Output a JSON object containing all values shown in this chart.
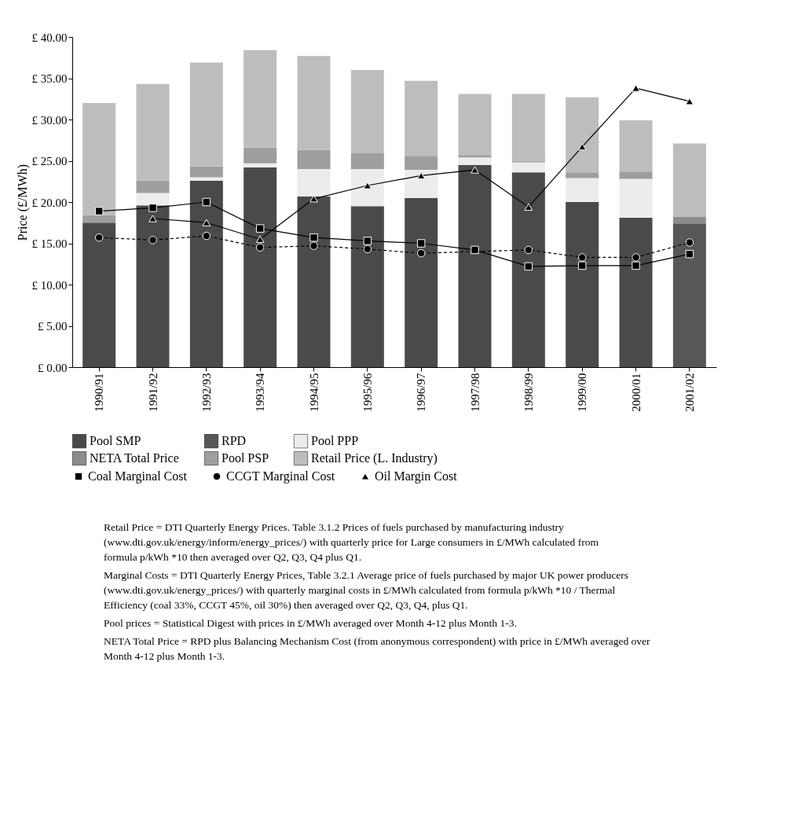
{
  "chart_data": {
    "type": "bar",
    "stacked": true,
    "legend": "bottom",
    "ylabel": "Price (£/MWh)",
    "categories": [
      "1990/91",
      "1991/92",
      "1992/93",
      "1993/94",
      "1994/95",
      "1995/96",
      "1996/97",
      "1997/98",
      "1998/99",
      "1999/00",
      "2000/01",
      "2001/02"
    ],
    "ylim": [
      0,
      40
    ],
    "yticks": [
      {
        "value": 0,
        "label": "£ 0.00"
      },
      {
        "value": 5,
        "label": "£ 5.00"
      },
      {
        "value": 10,
        "label": "£ 10.00"
      },
      {
        "value": 15,
        "label": "£ 15.00"
      },
      {
        "value": 20,
        "label": "£ 20.00"
      },
      {
        "value": 25,
        "label": "£ 25.00"
      },
      {
        "value": 30,
        "label": "£ 30.00"
      },
      {
        "value": 35,
        "label": "£ 35.00"
      },
      {
        "value": 40,
        "label": "£ 40.00"
      }
    ],
    "series": [
      {
        "name": "Pool SMP",
        "type": "bar",
        "color": "#4a4a4a",
        "values": [
          17.5,
          19.6,
          22.6,
          24.2,
          20.7,
          19.5,
          20.5,
          24.5,
          23.6,
          20.0,
          18.1,
          null
        ]
      },
      {
        "name": "RPD",
        "type": "bar",
        "color": "#575757",
        "values": [
          null,
          null,
          null,
          null,
          null,
          null,
          null,
          null,
          null,
          null,
          null,
          17.4
        ]
      },
      {
        "name": "Pool PPP",
        "type": "bar",
        "color": "#ececec",
        "values": [
          null,
          1.5,
          0.4,
          0.5,
          3.3,
          4.5,
          3.4,
          0.9,
          1.2,
          2.9,
          4.7,
          null
        ]
      },
      {
        "name": "NETA Total Price",
        "type": "bar",
        "color": "#8c8c8c",
        "values": [
          null,
          null,
          null,
          null,
          null,
          null,
          null,
          null,
          null,
          null,
          null,
          0.8
        ]
      },
      {
        "name": "Pool PSP",
        "type": "bar",
        "color": "#9e9e9e",
        "values": [
          0.9,
          1.5,
          1.3,
          1.9,
          2.3,
          1.9,
          1.7,
          0.3,
          0.2,
          0.7,
          0.9,
          null
        ]
      },
      {
        "name": "Retail Price (L. Industry)",
        "type": "bar",
        "color": "#bdbdbd",
        "values": [
          13.6,
          11.7,
          12.6,
          11.8,
          11.4,
          10.1,
          9.1,
          7.4,
          8.1,
          9.1,
          6.2,
          8.9
        ]
      },
      {
        "name": "Coal Marginal Cost",
        "type": "line",
        "color": "#000000",
        "marker": "square",
        "line_style": "solid",
        "values": [
          18.9,
          19.3,
          20.0,
          16.8,
          15.7,
          15.3,
          15.0,
          14.2,
          12.2,
          12.3,
          12.3,
          13.7
        ]
      },
      {
        "name": "CCGT Marginal Cost",
        "type": "line",
        "color": "#000000",
        "marker": "circle",
        "line_style": "dashed",
        "values": [
          15.7,
          15.4,
          15.9,
          14.5,
          14.7,
          14.3,
          13.8,
          null,
          14.2,
          13.3,
          13.3,
          15.1
        ]
      },
      {
        "name": "Oil Margin Cost",
        "type": "line",
        "color": "#000000",
        "marker": "triangle",
        "line_style": "solid",
        "values": [
          null,
          18.0,
          17.5,
          15.5,
          20.4,
          22.0,
          23.2,
          23.9,
          19.4,
          26.7,
          33.8,
          32.2
        ]
      }
    ],
    "annotations": [
      "Retail Price = DTI Quarterly Energy Prices. Table 3.1.2 Prices of fuels purchased by manufacturing industry (www.dti.gov.uk/energy/inform/energy_prices/) with quarterly price for Large consumers in £/MWh calculated from formula p/kWh *10 then averaged over Q2, Q3, Q4 plus Q1.",
      "Marginal Costs = DTI Quarterly Energy Prices, Table 3.2.1 Average price of fuels purchased by major UK power producers (www.dti.gov.uk/energy_prices/) with quarterly marginal costs in £/MWh calculated from formula p/kWh *10 / Thermal Efficiency (coal 33%, CCGT 45%, oil 30%) then averaged over Q2, Q3, Q4, plus Q1.",
      "Pool prices = Statistical Digest with prices in £/MWh averaged over Month 4-12 plus Month 1-3.",
      "NETA Total Price = RPD plus Balancing Mechanism Cost (from anonymous correspondent) with price in £/MWh averaged over Month 4-12 plus Month 1-3."
    ]
  }
}
